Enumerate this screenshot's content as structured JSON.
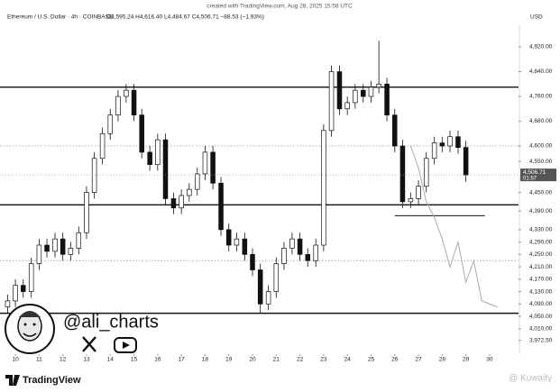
{
  "chart_data": {
    "type": "candlestick",
    "credit": "created with TradingView.com, Aug 28, 2025 15:58 UTC",
    "title": "Ethereum / U.S. Dollar · 4h · COINBASE",
    "ohlc_text": "O4,595.24 H4,616.40 L4,484.67 C4,506.71 −88.53 (−1.93%)",
    "currency": "USD",
    "up_color": "#ffffff",
    "down_color": "#111111",
    "edge_color": "#111111",
    "x": [
      9.67,
      10,
      10.33,
      10.67,
      11,
      11.33,
      11.67,
      12,
      12.33,
      12.67,
      13,
      13.33,
      13.67,
      14,
      14.33,
      14.67,
      15,
      15.33,
      15.67,
      16,
      16.33,
      16.67,
      17,
      17.33,
      17.67,
      18,
      18.33,
      18.67,
      19,
      19.33,
      19.67,
      20,
      20.33,
      20.67,
      21,
      21.33,
      21.67,
      22,
      22.33,
      22.67,
      23,
      23.33,
      23.67,
      24,
      24.33,
      24.67,
      25,
      25.33,
      25.67,
      26,
      26.33,
      26.67,
      27,
      27.33,
      27.67,
      28,
      28.33,
      28.67,
      29
    ],
    "open": [
      4080,
      4100,
      4150,
      4130,
      4220,
      4280,
      4260,
      4300,
      4250,
      4270,
      4320,
      4450,
      4560,
      4640,
      4700,
      4760,
      4780,
      4700,
      4580,
      4540,
      4620,
      4430,
      4400,
      4440,
      4460,
      4510,
      4580,
      4480,
      4330,
      4280,
      4300,
      4250,
      4200,
      4090,
      4130,
      4220,
      4270,
      4300,
      4250,
      4230,
      4280,
      4650,
      4840,
      4720,
      4740,
      4780,
      4760,
      4790,
      4800,
      4700,
      4600,
      4420,
      4430,
      4470,
      4560,
      4610,
      4600,
      4630,
      4595.24
    ],
    "high": [
      4120,
      4170,
      4170,
      4240,
      4300,
      4300,
      4320,
      4320,
      4290,
      4340,
      4470,
      4580,
      4660,
      4720,
      4780,
      4800,
      4800,
      4720,
      4600,
      4640,
      4640,
      4450,
      4460,
      4480,
      4530,
      4600,
      4600,
      4500,
      4350,
      4320,
      4320,
      4270,
      4220,
      4150,
      4240,
      4290,
      4320,
      4320,
      4270,
      4300,
      4670,
      4860,
      4860,
      4760,
      4800,
      4800,
      4810,
      4940,
      4820,
      4720,
      4620,
      4450,
      4490,
      4580,
      4630,
      4630,
      4650,
      4650,
      4616.4
    ],
    "low": [
      4060,
      4080,
      4110,
      4110,
      4200,
      4240,
      4240,
      4230,
      4230,
      4250,
      4300,
      4430,
      4540,
      4620,
      4680,
      4740,
      4680,
      4560,
      4520,
      4520,
      4410,
      4380,
      4380,
      4420,
      4440,
      4490,
      4460,
      4310,
      4260,
      4260,
      4230,
      4180,
      4060,
      4070,
      4110,
      4200,
      4250,
      4230,
      4210,
      4210,
      4260,
      4630,
      4700,
      4700,
      4720,
      4740,
      4740,
      4770,
      4680,
      4580,
      4400,
      4400,
      4410,
      4450,
      4540,
      4580,
      4580,
      4575,
      4484.67
    ],
    "close": [
      4100,
      4150,
      4130,
      4220,
      4280,
      4260,
      4300,
      4250,
      4270,
      4320,
      4450,
      4560,
      4640,
      4700,
      4760,
      4780,
      4700,
      4580,
      4540,
      4620,
      4430,
      4400,
      4440,
      4460,
      4510,
      4580,
      4480,
      4330,
      4280,
      4300,
      4250,
      4200,
      4090,
      4130,
      4220,
      4270,
      4300,
      4250,
      4230,
      4280,
      4650,
      4840,
      4720,
      4740,
      4780,
      4760,
      4790,
      4800,
      4700,
      4600,
      4420,
      4430,
      4470,
      4560,
      4610,
      4600,
      4630,
      4595.24,
      4506.71
    ],
    "levels": [
      {
        "value": 4790,
        "style": "solid"
      },
      {
        "value": 4410,
        "style": "solid"
      },
      {
        "value": 4060,
        "style": "solid"
      },
      {
        "value": 4600,
        "style": "dotted"
      },
      {
        "value": 4230,
        "style": "dotted"
      }
    ],
    "segment": {
      "x": [
        26,
        29.8
      ],
      "value": 4375
    },
    "projection": {
      "color": "#aaaaaa",
      "x": [
        26.67,
        27,
        27.33,
        27.67,
        28,
        28.33,
        28.67,
        29,
        29.33,
        29.67,
        30.33
      ],
      "values": [
        4600,
        4530,
        4420,
        4370,
        4300,
        4210,
        4290,
        4160,
        4230,
        4100,
        4080
      ]
    },
    "price_tag": {
      "value": 4506.71,
      "label": "4,506.71"
    },
    "countdown": "01:57",
    "xlim": [
      9.35,
      31.22
    ],
    "xticks": [
      10,
      11,
      12,
      13,
      14,
      15,
      16,
      17,
      18,
      19,
      20,
      21,
      22,
      23,
      24,
      25,
      26,
      27,
      28,
      29,
      30
    ],
    "ylim": [
      3928,
      4955
    ],
    "yticks": [
      {
        "value": 4920,
        "label": "4,920.00"
      },
      {
        "value": 4840,
        "label": "4,840.00"
      },
      {
        "value": 4760,
        "label": "4,760.00"
      },
      {
        "value": 4680,
        "label": "4,680.00"
      },
      {
        "value": 4600,
        "label": "4,600.00"
      },
      {
        "value": 4550,
        "label": "4,550.00"
      },
      {
        "value": 4450,
        "label": "4,450.00"
      },
      {
        "value": 4390,
        "label": "4,390.00"
      },
      {
        "value": 4330,
        "label": "4,330.00"
      },
      {
        "value": 4290,
        "label": "4,290.00"
      },
      {
        "value": 4250,
        "label": "4,250.00"
      },
      {
        "value": 4210,
        "label": "4,210.00"
      },
      {
        "value": 4170,
        "label": "4,170.00"
      },
      {
        "value": 4130,
        "label": "4,130.00"
      },
      {
        "value": 4090,
        "label": "4,090.00"
      },
      {
        "value": 4050,
        "label": "4,050.00"
      },
      {
        "value": 4010,
        "label": "4,010.00"
      },
      {
        "value": 3972.5,
        "label": "3,972.50"
      }
    ],
    "handle": "@ali_charts",
    "brand": "TradingView",
    "watermark": "@ Kuwaity"
  }
}
